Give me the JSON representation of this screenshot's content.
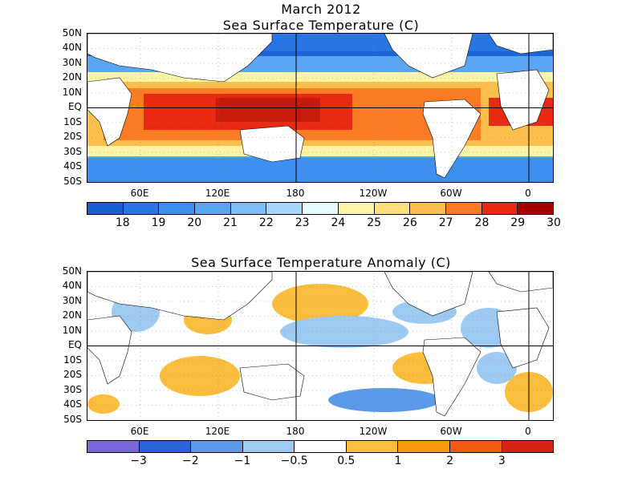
{
  "top": {
    "title_line1": "March 2012",
    "title_line2": "Sea Surface Temperature (C)",
    "lat_labels": [
      "50N",
      "40N",
      "30N",
      "20N",
      "10N",
      "EQ",
      "10S",
      "20S",
      "30S",
      "40S",
      "50S"
    ],
    "lon_labels": [
      "60E",
      "120E",
      "180",
      "120W",
      "60W",
      "0"
    ],
    "colorbar": {
      "colors": [
        "#1a5fd0",
        "#2a75e6",
        "#3e8ff2",
        "#5aa6f5",
        "#7fbdf7",
        "#a6d6fa",
        "#e6fbff",
        "#fff3a6",
        "#ffe07a",
        "#fcbf4c",
        "#fb7c22",
        "#e82a12",
        "#a80000"
      ],
      "ticks": [
        "18",
        "19",
        "20",
        "21",
        "22",
        "23",
        "24",
        "25",
        "26",
        "27",
        "28",
        "29",
        "30"
      ]
    }
  },
  "bottom": {
    "title": "Sea Surface Temperature Anomaly (C)",
    "lat_labels": [
      "50N",
      "40N",
      "30N",
      "20N",
      "10N",
      "EQ",
      "10S",
      "20S",
      "30S",
      "40S",
      "50S"
    ],
    "lon_labels": [
      "60E",
      "120E",
      "180",
      "120W",
      "60W",
      "0"
    ],
    "colorbar": {
      "colors": [
        "#7b68d8",
        "#2a64d8",
        "#5b9ae8",
        "#9dcaf3",
        "#ffffff",
        "#fbbe3c",
        "#f79a0e",
        "#f05a12",
        "#d92414"
      ],
      "ticks": [
        "−3",
        "−2",
        "−1",
        "−0.5",
        "0.5",
        "1",
        "2",
        "3"
      ]
    }
  }
}
